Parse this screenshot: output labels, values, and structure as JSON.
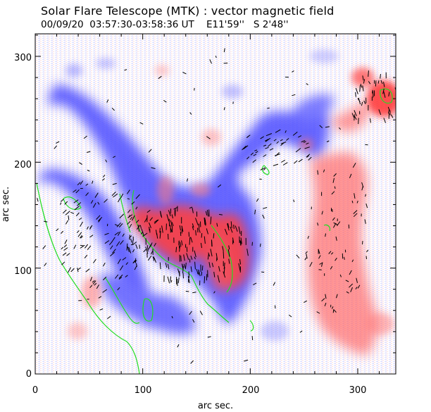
{
  "header": {
    "title": "Solar Flare Telescope (MTK) : vector magnetic field",
    "date": "00/09/20",
    "time_range": "03:57:30-03:58:36 UT",
    "position_ew": "E11'59''",
    "position_ns": "S 2'48''"
  },
  "chart_data": {
    "type": "heatmap",
    "xlabel": "arc sec.",
    "ylabel": "arc sec.",
    "xlim": [
      0,
      340
    ],
    "ylim": [
      0,
      320
    ],
    "x_ticks": [
      "0",
      "100",
      "200",
      "300"
    ],
    "y_ticks": [
      "0",
      "100",
      "200",
      "300"
    ],
    "colors": {
      "positive_polarity": "#ff3b3b",
      "negative_polarity": "#3b3bff",
      "neutral_line": "#22dd22",
      "transverse_field_vectors": "#000000"
    }
  }
}
